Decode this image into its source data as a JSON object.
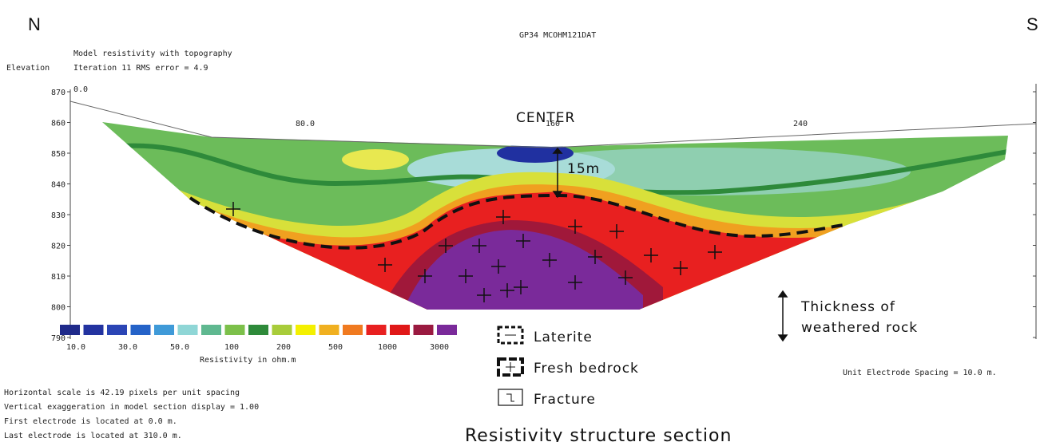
{
  "header": {
    "north": "N",
    "south": "S",
    "file_name": "GP34 MCOHM121DAT",
    "model_title": "Model resistivity with topography",
    "iteration": "Iteration 11 RMS error = 4.9"
  },
  "axes": {
    "y_label": "Elevation",
    "y_ticks": [
      "790",
      "800",
      "810",
      "820",
      "830",
      "840",
      "850",
      "860",
      "870"
    ],
    "x_ticks": [
      "0.0",
      "80.0",
      "160",
      "240"
    ]
  },
  "annotations": {
    "center": "CENTER",
    "depth": "15m",
    "thickness": [
      "Thickness of",
      "weathered rock"
    ]
  },
  "color_scale": {
    "labels": [
      "10.0",
      "30.0",
      "50.0",
      "100",
      "200",
      "500",
      "1000",
      "3000"
    ],
    "title": "Resistivity in ohm.m"
  },
  "legend": {
    "items": [
      "Laterite",
      "Fresh bedrock",
      "Fracture"
    ]
  },
  "notes": {
    "spacing": "Unit Electrode Spacing = 10.0 m.",
    "lines": [
      "Horizontal scale is 42.19 pixels per unit spacing",
      "Vertical exaggeration in model section display = 1.00",
      "First electrode is located at 0.0  m.",
      "Last electrode is located at 310.0 m."
    ]
  },
  "caption": "Resistivity structure section"
}
